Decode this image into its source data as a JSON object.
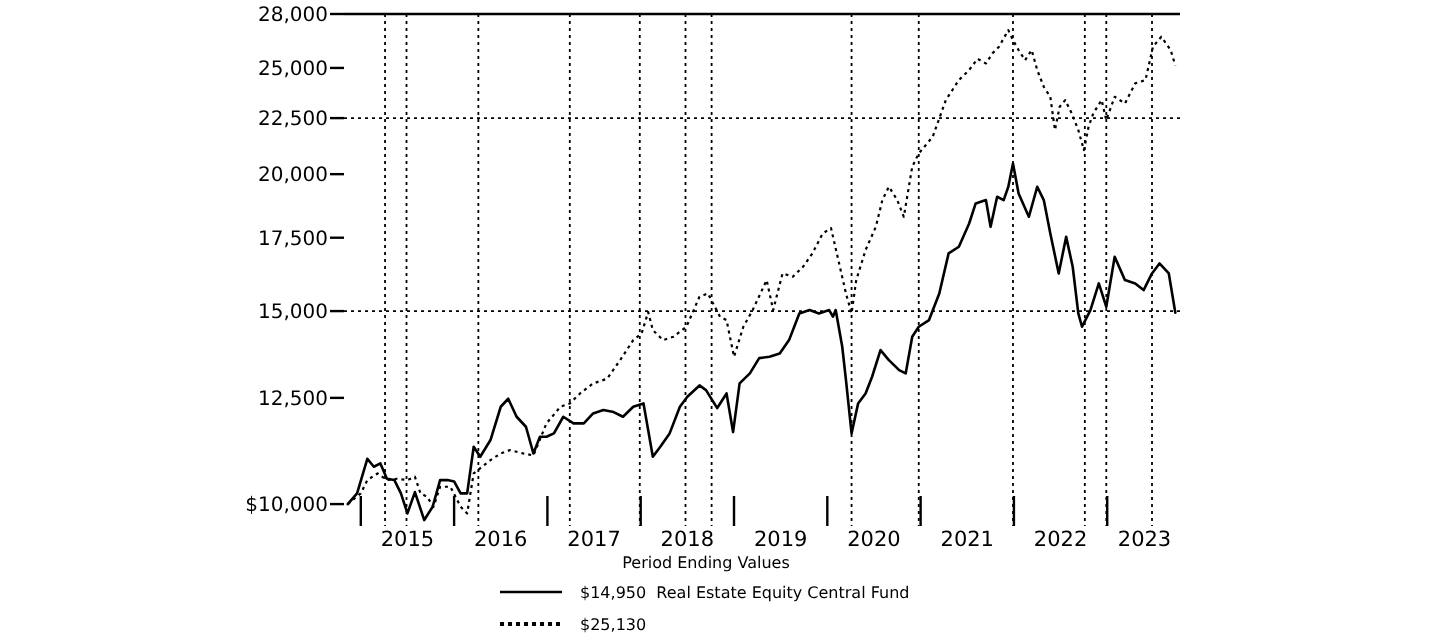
{
  "chart_data": {
    "type": "line",
    "legend_title": "Period Ending Values",
    "log": true,
    "grid": false,
    "legend": "bottom",
    "xlim": [
      2014.82,
      2023.78
    ],
    "ylim": [
      9550,
      28000
    ],
    "xticks": [
      {
        "value": 2015,
        "label": null
      },
      {
        "value": 2015.5,
        "label": "2015"
      },
      {
        "value": 2016,
        "label": null
      },
      {
        "value": 2016.5,
        "label": "2016"
      },
      {
        "value": 2017,
        "label": null
      },
      {
        "value": 2017.5,
        "label": "2017"
      },
      {
        "value": 2018,
        "label": null
      },
      {
        "value": 2018.5,
        "label": "2018"
      },
      {
        "value": 2019,
        "label": null
      },
      {
        "value": 2019.5,
        "label": "2019"
      },
      {
        "value": 2020,
        "label": null
      },
      {
        "value": 2020.5,
        "label": "2020"
      },
      {
        "value": 2021,
        "label": null
      },
      {
        "value": 2021.5,
        "label": "2021"
      },
      {
        "value": 2022,
        "label": null
      },
      {
        "value": 2022.5,
        "label": "2022"
      },
      {
        "value": 2023,
        "label": null
      },
      {
        "value": 2023.4,
        "label": "2023"
      }
    ],
    "yticks": [
      {
        "value": 10000,
        "label": "$10,000"
      },
      {
        "value": 12500,
        "label": "12,500"
      },
      {
        "value": 15000,
        "label": "15,000"
      },
      {
        "value": 17500,
        "label": "17,500"
      },
      {
        "value": 20000,
        "label": "20,000"
      },
      {
        "value": 22500,
        "label": "22,500"
      },
      {
        "value": 25000,
        "label": "25,000"
      },
      {
        "value": 28000,
        "label": "28,000"
      }
    ],
    "ref_lines": [
      {
        "axis": "y",
        "value": 22500,
        "line_style": "dotted"
      },
      {
        "axis": "y",
        "value": 15000,
        "line_style": "dotted"
      },
      {
        "axis": "x",
        "value": 2015.26,
        "line_style": "dotted"
      },
      {
        "axis": "x",
        "value": 2015.49,
        "line_style": "dotted"
      },
      {
        "axis": "x",
        "value": 2016.26,
        "line_style": "dotted"
      },
      {
        "axis": "x",
        "value": 2017.24,
        "line_style": "dotted"
      },
      {
        "axis": "x",
        "value": 2017.99,
        "line_style": "dotted"
      },
      {
        "axis": "x",
        "value": 2018.48,
        "line_style": "dotted"
      },
      {
        "axis": "x",
        "value": 2018.76,
        "line_style": "dotted"
      },
      {
        "axis": "x",
        "value": 2020.26,
        "line_style": "dotted"
      },
      {
        "axis": "x",
        "value": 2020.98,
        "line_style": "dotted"
      },
      {
        "axis": "x",
        "value": 2021.99,
        "line_style": "dotted"
      },
      {
        "axis": "x",
        "value": 2022.76,
        "line_style": "dotted"
      },
      {
        "axis": "x",
        "value": 2022.99,
        "line_style": "dotted"
      },
      {
        "axis": "x",
        "value": 2023.48,
        "line_style": "dotted"
      }
    ],
    "series": [
      {
        "name": "$14,950  Real Estate Equity Central Fund",
        "color": "#000000",
        "line_style": "solid",
        "x": [
          2014.86,
          2014.96,
          2015.07,
          2015.14,
          2015.21,
          2015.28,
          2015.36,
          2015.43,
          2015.5,
          2015.58,
          2015.68,
          2015.77,
          2015.85,
          2015.93,
          2016.0,
          2016.07,
          2016.14,
          2016.21,
          2016.28,
          2016.39,
          2016.5,
          2016.58,
          2016.67,
          2016.77,
          2016.85,
          2016.92,
          2016.99,
          2017.07,
          2017.17,
          2017.28,
          2017.39,
          2017.49,
          2017.6,
          2017.71,
          2017.81,
          2017.92,
          2018.03,
          2018.13,
          2018.21,
          2018.31,
          2018.42,
          2018.5,
          2018.63,
          2018.7,
          2018.82,
          2018.92,
          2018.99,
          2019.06,
          2019.17,
          2019.27,
          2019.38,
          2019.49,
          2019.59,
          2019.7,
          2019.81,
          2019.91,
          2020.02,
          2020.06,
          2020.09,
          2020.16,
          2020.2,
          2020.26,
          2020.33,
          2020.41,
          2020.48,
          2020.57,
          2020.66,
          2020.77,
          2020.84,
          2020.91,
          2020.98,
          2021.09,
          2021.2,
          2021.3,
          2021.41,
          2021.52,
          2021.59,
          2021.7,
          2021.75,
          2021.82,
          2021.89,
          2021.94,
          2021.99,
          2022.05,
          2022.16,
          2022.25,
          2022.32,
          2022.39,
          2022.48,
          2022.56,
          2022.63,
          2022.69,
          2022.73,
          2022.82,
          2022.91,
          2022.99,
          2023.08,
          2023.19,
          2023.3,
          2023.39,
          2023.48,
          2023.56,
          2023.66,
          2023.73
        ],
        "values": [
          10000,
          10227,
          10999,
          10816,
          10892,
          10547,
          10517,
          10227,
          9806,
          10255,
          9670,
          9944,
          10517,
          10517,
          10488,
          10227,
          10227,
          11280,
          11045,
          11440,
          12269,
          12477,
          12014,
          11764,
          11123,
          11520,
          11520,
          11601,
          12014,
          11847,
          11847,
          12099,
          12184,
          12132,
          12014,
          12269,
          12355,
          11045,
          11280,
          11601,
          12269,
          12529,
          12831,
          12706,
          12235,
          12617,
          11633,
          12885,
          13159,
          13589,
          13628,
          13723,
          14113,
          14927,
          15032,
          14927,
          15032,
          14823,
          15032,
          13917,
          12976,
          11601,
          12355,
          12617,
          13067,
          13820,
          13532,
          13251,
          13159,
          14212,
          14514,
          14720,
          15567,
          16932,
          17171,
          18030,
          18808,
          18940,
          17905,
          19073,
          18940,
          19478,
          20455,
          19207,
          18286,
          19478,
          18940,
          17655,
          16235,
          17531,
          16464,
          14927,
          14514,
          15032,
          15898,
          15138,
          16814,
          16009,
          15898,
          15677,
          16235,
          16580,
          16235,
          14950
        ]
      },
      {
        "name": "$25,130",
        "color": "#000000",
        "line_style": "dotted",
        "x": [
          2014.86,
          2015.0,
          2015.07,
          2015.18,
          2015.28,
          2015.39,
          2015.5,
          2015.58,
          2015.64,
          2015.71,
          2015.78,
          2015.85,
          2015.96,
          2016.07,
          2016.14,
          2016.21,
          2016.39,
          2016.5,
          2016.6,
          2016.74,
          2016.85,
          2016.99,
          2017.14,
          2017.24,
          2017.35,
          2017.49,
          2017.64,
          2017.78,
          2017.92,
          2018.01,
          2018.08,
          2018.13,
          2018.24,
          2018.35,
          2018.49,
          2018.63,
          2018.72,
          2018.85,
          2018.92,
          2019.0,
          2019.1,
          2019.2,
          2019.35,
          2019.42,
          2019.52,
          2019.63,
          2019.74,
          2019.84,
          2019.95,
          2020.04,
          2020.2,
          2020.26,
          2020.31,
          2020.41,
          2020.52,
          2020.59,
          2020.66,
          2020.75,
          2020.82,
          2020.91,
          2020.98,
          2021.13,
          2021.27,
          2021.41,
          2021.52,
          2021.61,
          2021.7,
          2021.77,
          2021.84,
          2021.94,
          2021.99,
          2022.05,
          2022.12,
          2022.19,
          2022.25,
          2022.32,
          2022.39,
          2022.44,
          2022.49,
          2022.55,
          2022.62,
          2022.69,
          2022.75,
          2022.8,
          2022.85,
          2022.94,
          2022.99,
          2023.08,
          2023.19,
          2023.3,
          2023.41,
          2023.49,
          2023.58,
          2023.68,
          2023.73
        ],
        "values": [
          10000,
          10227,
          10517,
          10665,
          10517,
          10547,
          10517,
          10591,
          10227,
          10155,
          9944,
          10371,
          10371,
          9944,
          9806,
          10665,
          10968,
          11123,
          11201,
          11123,
          11076,
          11847,
          12269,
          12355,
          12617,
          12885,
          13012,
          13532,
          14113,
          14312,
          14969,
          14413,
          14113,
          14212,
          14514,
          15458,
          15567,
          14823,
          14720,
          13628,
          14514,
          15032,
          16009,
          15032,
          16235,
          16122,
          16464,
          16932,
          17655,
          17855,
          15567,
          14927,
          16009,
          17051,
          17905,
          18940,
          19478,
          18940,
          18286,
          20313,
          20890,
          21635,
          23367,
          24372,
          24889,
          25488,
          25239,
          25776,
          26139,
          27069,
          26506,
          25957,
          25416,
          25957,
          24889,
          24031,
          23530,
          21940,
          23041,
          23367,
          22721,
          21940,
          21037,
          22095,
          22721,
          23367,
          22406,
          23530,
          23203,
          24201,
          24372,
          26139,
          26692,
          25957,
          25130
        ]
      }
    ]
  }
}
